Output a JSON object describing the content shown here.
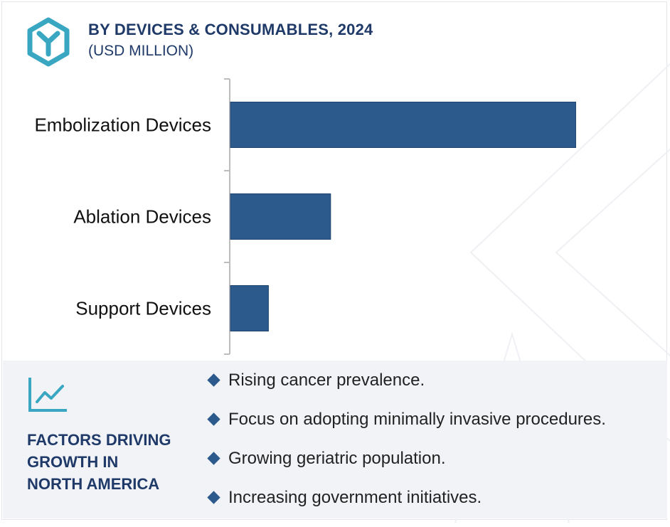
{
  "header": {
    "title": "BY DEVICES & CONSUMABLES, 2024",
    "subtitle": "(USD MILLION)",
    "logo_icon": "y-hexagon-icon"
  },
  "chart_data": {
    "type": "bar",
    "orientation": "horizontal",
    "title": "BY DEVICES & CONSUMABLES, 2024",
    "subtitle": "(USD MILLION)",
    "categories": [
      "Embolization Devices",
      "Ablation Devices",
      "Support Devices"
    ],
    "values": [
      100,
      29,
      11
    ],
    "xlim": [
      0,
      110
    ],
    "grid": false,
    "value_labels": false,
    "bar_color": "#2c5a8c"
  },
  "factors": {
    "icon": "line-chart-icon",
    "heading_lines": [
      "FACTORS DRIVING",
      "GROWTH IN",
      "NORTH AMERICA"
    ],
    "items": [
      "Rising cancer prevalence.",
      "Focus on adopting minimally invasive procedures.",
      "Growing geriatric population.",
      "Increasing government initiatives."
    ]
  },
  "colors": {
    "accent": "#3aa7c2",
    "bar": "#2c5a8c",
    "heading": "#1f3a68",
    "panel_bg": "#f1f3f7"
  }
}
